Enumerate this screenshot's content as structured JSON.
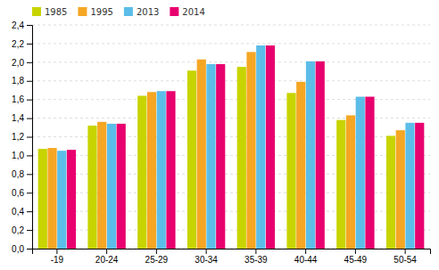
{
  "chart_data": {
    "type": "bar",
    "categories": [
      "-19",
      "20-24",
      "25-29",
      "30-34",
      "35-39",
      "40-44",
      "45-49",
      "50-54"
    ],
    "series": [
      {
        "name": "1985",
        "color": "#c8d400",
        "values": [
          1.07,
          1.32,
          1.64,
          1.91,
          1.95,
          1.67,
          1.38,
          1.21
        ]
      },
      {
        "name": "1995",
        "color": "#f5a623",
        "values": [
          1.08,
          1.36,
          1.68,
          2.03,
          2.11,
          1.79,
          1.43,
          1.27
        ]
      },
      {
        "name": "2013",
        "color": "#5bbde8",
        "values": [
          1.05,
          1.34,
          1.69,
          1.98,
          2.18,
          2.01,
          1.63,
          1.35
        ]
      },
      {
        "name": "2014",
        "color": "#e8006e",
        "values": [
          1.06,
          1.34,
          1.69,
          1.98,
          2.18,
          2.01,
          1.63,
          1.35
        ]
      }
    ],
    "ylim": [
      0.0,
      2.4
    ],
    "yticks": [
      {
        "value": 0.0,
        "label": "0,0"
      },
      {
        "value": 0.2,
        "label": "0,2"
      },
      {
        "value": 0.4,
        "label": "0,4"
      },
      {
        "value": 0.6,
        "label": "0,6"
      },
      {
        "value": 0.8,
        "label": "0,8"
      },
      {
        "value": 1.0,
        "label": "1,0"
      },
      {
        "value": 1.2,
        "label": "1,2"
      },
      {
        "value": 1.4,
        "label": "1,4"
      },
      {
        "value": 1.6,
        "label": "1,6"
      },
      {
        "value": 1.8,
        "label": "1,8"
      },
      {
        "value": 2.0,
        "label": "2,0"
      },
      {
        "value": 2.2,
        "label": "2,2"
      },
      {
        "value": 2.4,
        "label": "2,4"
      }
    ],
    "grid": true,
    "legend": "upper left"
  }
}
